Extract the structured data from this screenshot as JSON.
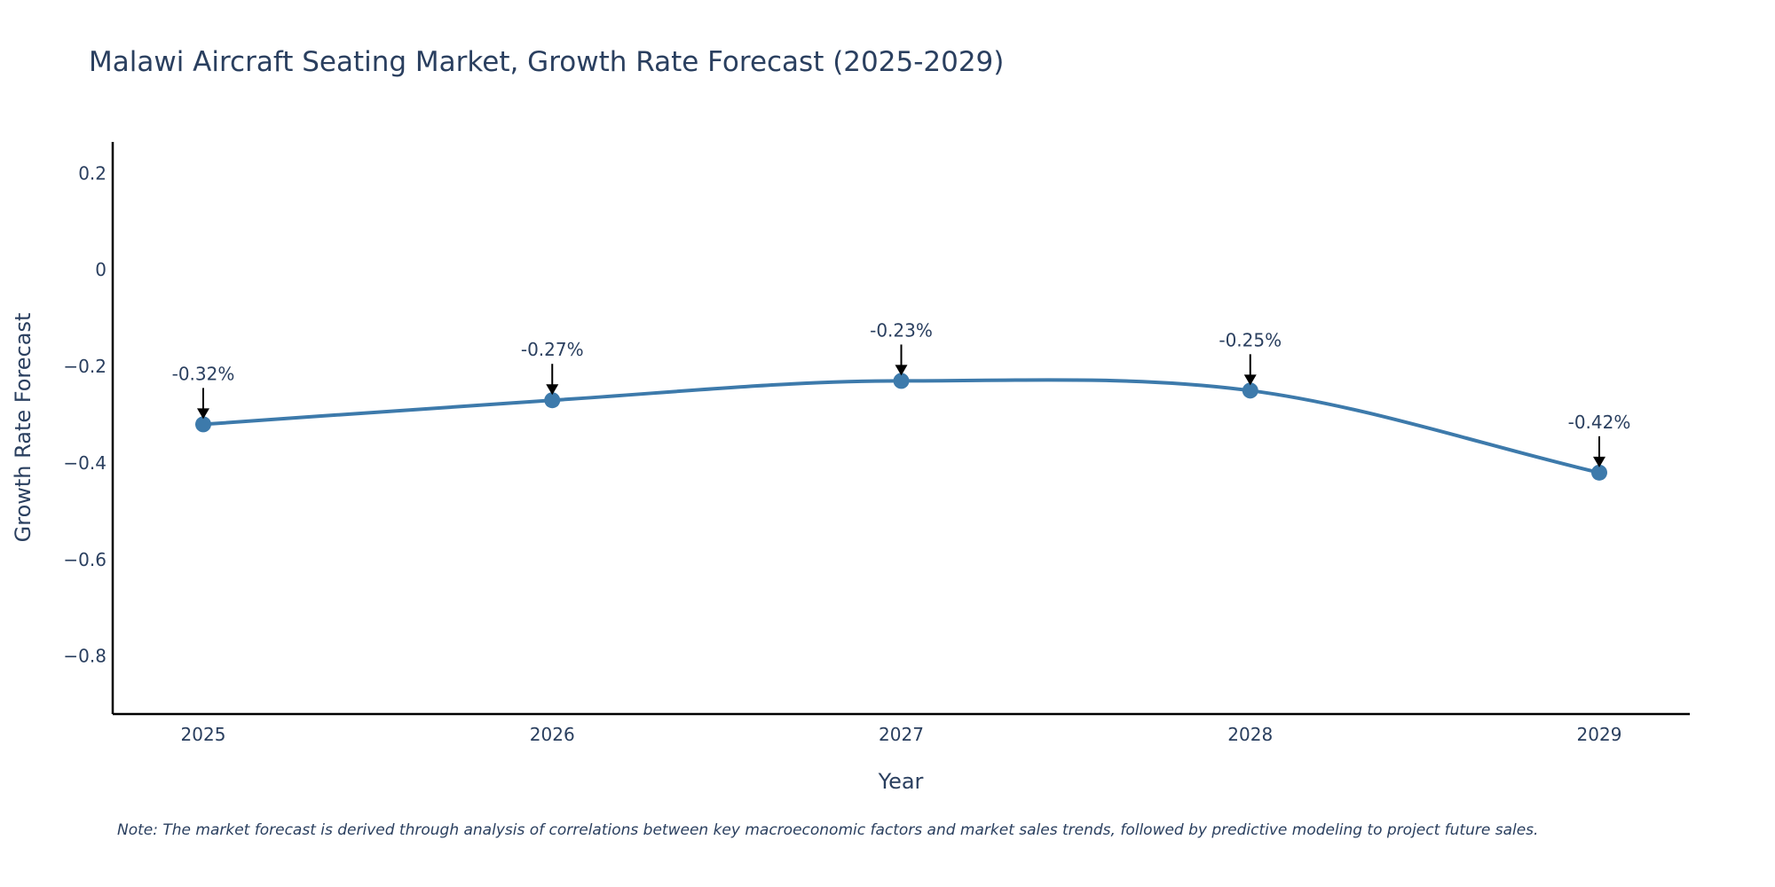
{
  "chart_data": {
    "type": "line",
    "title": "Malawi Aircraft Seating Market, Growth Rate Forecast (2025-2029)",
    "xlabel": "Year",
    "ylabel": "Growth Rate Forecast",
    "categories": [
      "2025",
      "2026",
      "2027",
      "2028",
      "2029"
    ],
    "series": [
      {
        "name": "Growth Rate Forecast",
        "values": [
          -0.32,
          -0.27,
          -0.23,
          -0.25,
          -0.42
        ]
      }
    ],
    "data_labels": [
      "-0.32%",
      "-0.27%",
      "-0.23%",
      "-0.25%",
      "-0.42%"
    ],
    "yticks": [
      0.2,
      0,
      -0.2,
      -0.4,
      -0.6,
      -0.8
    ],
    "ytick_labels": [
      "0.2",
      "0",
      "−0.2",
      "−0.4",
      "−0.6",
      "−0.8"
    ],
    "ylim": [
      -0.92,
      0.265
    ],
    "grid": false,
    "line_color": "#3d7aab",
    "note": "Note: The market forecast is derived through analysis of correlations between key macroeconomic factors and market sales trends, followed by predictive modeling to project future sales."
  }
}
